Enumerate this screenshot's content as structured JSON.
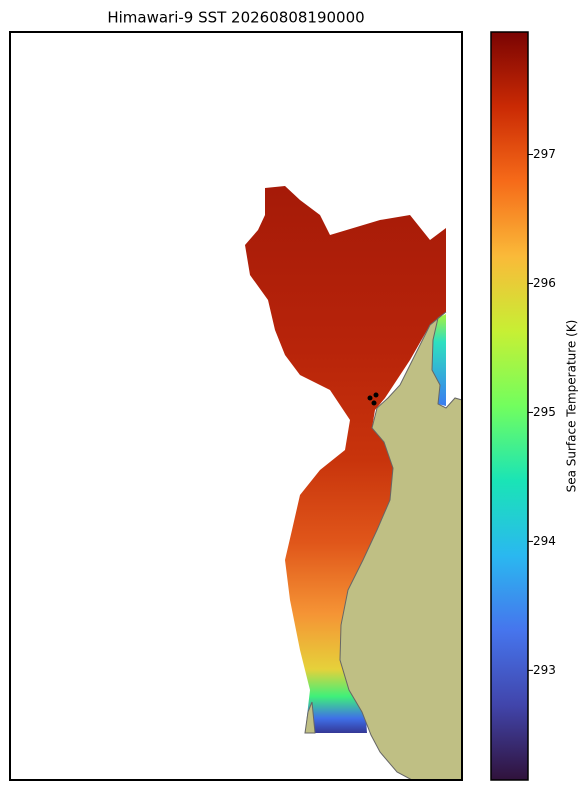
{
  "title": "Himawari-9 SST 20260808190000",
  "colorbar": {
    "label": "Sea Surface Temperature (K)",
    "lim": [
      292.15,
      297.95
    ],
    "ticks": [
      293,
      294,
      295,
      296,
      297
    ]
  }
}
